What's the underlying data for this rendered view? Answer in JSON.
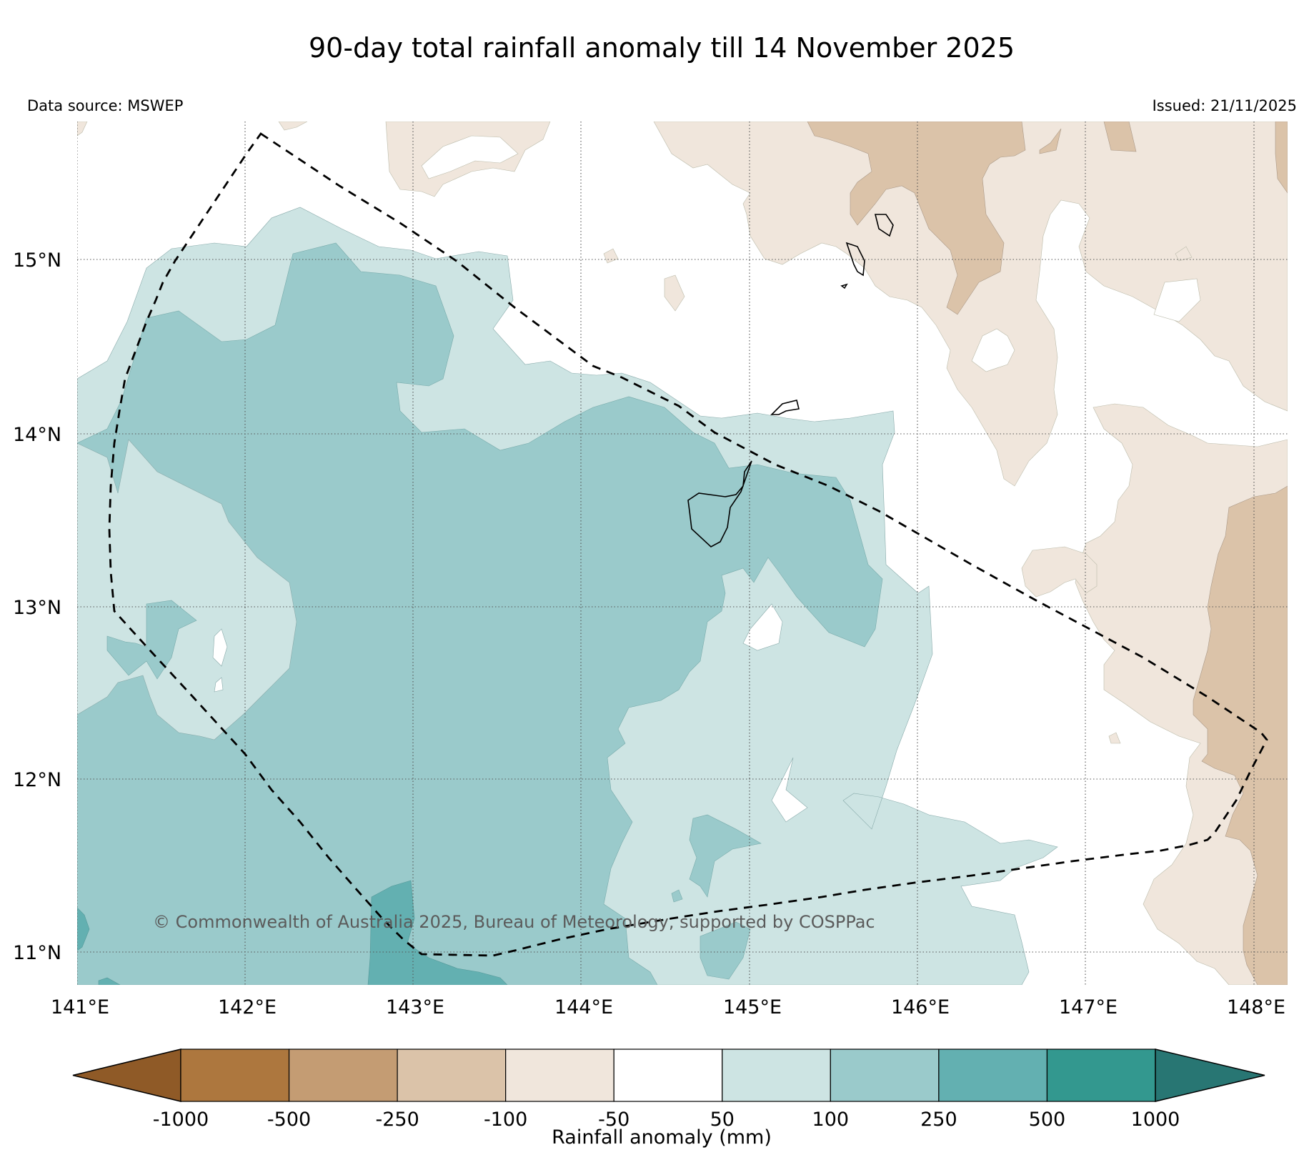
{
  "title": "90-day total rainfall anomaly till 14 November 2025",
  "data_source": "Data source: MSWEP",
  "issued": "Issued: 21/11/2025",
  "copyright": "© Commonwealth of Australia 2025, Bureau of Meteorology, supported by COSPPac",
  "lon_ticks": [
    "141°E",
    "142°E",
    "143°E",
    "144°E",
    "145°E",
    "146°E",
    "147°E",
    "148°E"
  ],
  "lat_ticks": [
    "15°N",
    "14°N",
    "13°N",
    "12°N",
    "11°N"
  ],
  "colorbar": {
    "label": "Rainfall anomaly (mm)",
    "tick_labels": [
      "-1000",
      "-500",
      "-250",
      "-100",
      "-50",
      "50",
      "100",
      "250",
      "500",
      "1000"
    ],
    "colors": [
      "#8f5a27",
      "#ad773e",
      "#c49c73",
      "#dbc3a9",
      "#f0e6dc",
      "#ffffff",
      "#cde4e3",
      "#9acacb",
      "#63b0b1",
      "#33988f",
      "#287673"
    ]
  },
  "map_extent": {
    "lon_min": 141.0,
    "lon_max": 148.2,
    "lat_min": 10.8,
    "lat_max": 15.82
  }
}
